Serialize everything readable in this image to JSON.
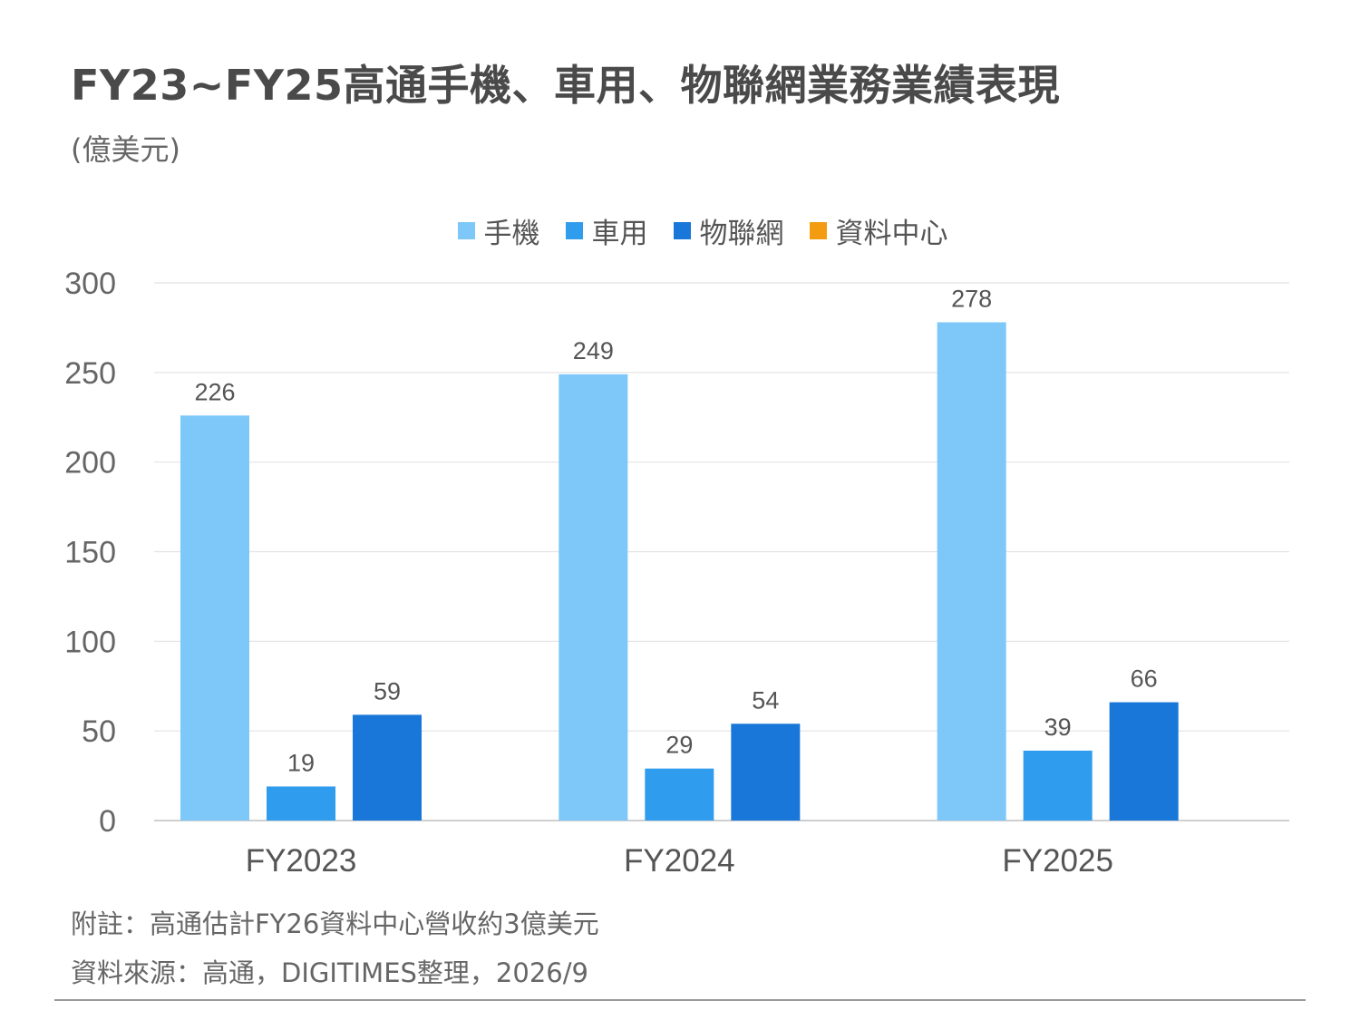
{
  "title": "FY23~FY25高通手機、車用、物聯網業務業績表現",
  "unit": "(億美元)",
  "legend": [
    {
      "label": "手機",
      "color": "#7dc8f8"
    },
    {
      "label": "車用",
      "color": "#2f9ced"
    },
    {
      "label": "物聯網",
      "color": "#1877d8"
    },
    {
      "label": "資料中心",
      "color": "#f39c12"
    }
  ],
  "chart_data": {
    "type": "bar",
    "categories": [
      "FY2023",
      "FY2024",
      "FY2025"
    ],
    "series": [
      {
        "name": "手機",
        "values": [
          226,
          249,
          278
        ],
        "color": "#7dc8f8"
      },
      {
        "name": "車用",
        "values": [
          19,
          29,
          39
        ],
        "color": "#2f9ced"
      },
      {
        "name": "物聯網",
        "values": [
          59,
          54,
          66
        ],
        "color": "#1877d8"
      },
      {
        "name": "資料中心",
        "values": [
          null,
          null,
          null
        ],
        "color": "#f39c12"
      }
    ],
    "ylim": [
      0,
      300
    ],
    "yticks": [
      0,
      50,
      100,
      150,
      200,
      250,
      300
    ],
    "grid": true,
    "legend_position": "top-center",
    "data_labels": true
  },
  "footnote": "附註：高通估計FY26資料中心營收約3億美元",
  "source": "資料來源：高通，DIGITIMES整理，2026/9"
}
